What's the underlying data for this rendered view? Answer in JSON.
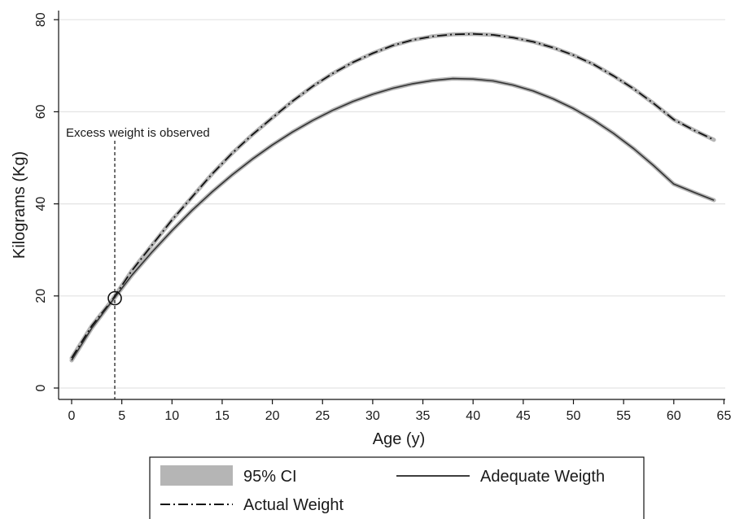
{
  "chart_data": {
    "type": "line",
    "xlabel": "Age (y)",
    "ylabel": "Kilograms (Kg)",
    "xlim": [
      -1.5,
      65.5
    ],
    "ylim": [
      -2,
      82
    ],
    "xticks": [
      0,
      5,
      10,
      15,
      20,
      25,
      30,
      35,
      40,
      45,
      50,
      55,
      60,
      65
    ],
    "yticks": [
      0,
      20,
      40,
      60,
      80
    ],
    "grid": "horizontal",
    "legend_position": "bottom",
    "colors": {
      "ci_band": "#b5b5b5",
      "actual": "#111111",
      "adequate": "#333333",
      "grid": "#e3e3e3"
    },
    "series": [
      {
        "name": "Actual Weight",
        "style": "long-dash-dot",
        "x": [
          0,
          2,
          4,
          6,
          8,
          10,
          12,
          14,
          16,
          18,
          20,
          22,
          24,
          26,
          28,
          30,
          32,
          34,
          36,
          38,
          40,
          42,
          44,
          46,
          48,
          50,
          52,
          54,
          56,
          58,
          60,
          62,
          64
        ],
        "y": [
          6.5,
          13.5,
          19.0,
          25.5,
          31.0,
          36.5,
          41.5,
          46.5,
          51.0,
          55.0,
          58.7,
          62.3,
          65.5,
          68.3,
          70.7,
          72.7,
          74.4,
          75.6,
          76.4,
          76.8,
          76.9,
          76.7,
          76.1,
          75.2,
          73.9,
          72.3,
          70.3,
          67.8,
          65.0,
          61.8,
          58.3,
          56.0,
          53.9
        ],
        "ci": true
      },
      {
        "name": "Adequate Weigth",
        "style": "solid",
        "x": [
          0,
          2,
          4,
          6,
          8,
          10,
          12,
          14,
          16,
          18,
          20,
          22,
          24,
          26,
          28,
          30,
          32,
          34,
          36,
          38,
          40,
          42,
          44,
          46,
          48,
          50,
          52,
          54,
          56,
          58,
          60,
          62,
          64
        ],
        "y": [
          6.0,
          13.0,
          18.8,
          24.5,
          29.5,
          34.2,
          38.6,
          42.6,
          46.3,
          49.7,
          52.8,
          55.6,
          58.1,
          60.3,
          62.2,
          63.8,
          65.1,
          66.1,
          66.8,
          67.2,
          67.1,
          66.7,
          65.8,
          64.5,
          62.8,
          60.7,
          58.2,
          55.3,
          52.0,
          48.3,
          44.3,
          42.5,
          40.8
        ],
        "ci": true
      }
    ],
    "annotations": [
      {
        "text": "Excess weight is observed",
        "x": 4.3,
        "y": 19.5
      }
    ],
    "legend": {
      "ci_label": "95% CI",
      "actual_label": "Actual Weight",
      "adequate_label": "Adequate Weigth"
    }
  }
}
